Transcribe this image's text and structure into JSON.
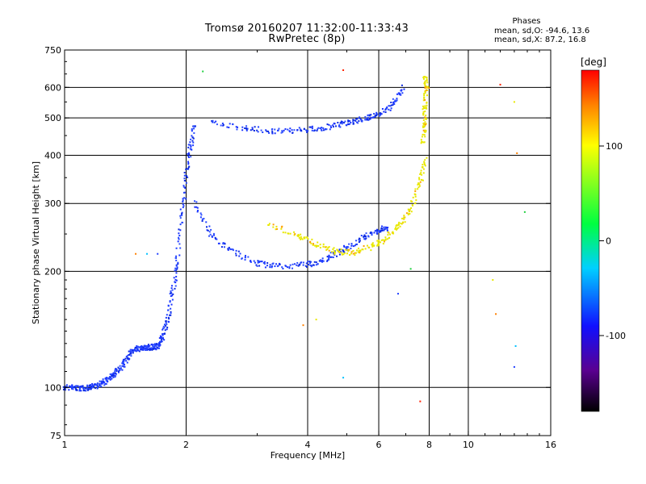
{
  "header": {
    "title": "Tromsø 20160207 11:32:00-11:33:43",
    "subtitle": "RwPretec (8p)"
  },
  "stats": {
    "title": "Phases",
    "line1": "mean, sd,O: -94.6, 13.6",
    "line2": "mean, sd,X:  87.2, 16.8"
  },
  "colorbar": {
    "unit": "[deg]",
    "ticks": [
      {
        "value": 100,
        "label": "100"
      },
      {
        "value": 0,
        "label": "0"
      },
      {
        "value": -100,
        "label": "-100"
      }
    ],
    "range": [
      -180,
      180
    ]
  },
  "chart_data": {
    "type": "scatter",
    "title": "Tromsø 20160207 11:32:00-11:33:43",
    "subtitle": "RwPretec (8p)",
    "xlabel": "Frequency [MHz]",
    "ylabel": "Stationary phase Virtual Height [km]",
    "x_scale": "log",
    "y_scale": "log",
    "xlim": [
      1,
      16
    ],
    "ylim": [
      75,
      750
    ],
    "x_ticks": [
      {
        "value": 1,
        "label": "1"
      },
      {
        "value": 2,
        "label": "2"
      },
      {
        "value": 4,
        "label": "4"
      },
      {
        "value": 6,
        "label": "6"
      },
      {
        "value": 8,
        "label": "8"
      },
      {
        "value": 10,
        "label": "10"
      },
      {
        "value": 16,
        "label": "16"
      }
    ],
    "y_ticks": [
      {
        "value": 75,
        "label": "75"
      },
      {
        "value": 100,
        "label": "100"
      },
      {
        "value": 200,
        "label": "200"
      },
      {
        "value": 300,
        "label": "300"
      },
      {
        "value": 400,
        "label": "400"
      },
      {
        "value": 500,
        "label": "500"
      },
      {
        "value": 600,
        "label": "600"
      },
      {
        "value": 750,
        "label": "750"
      }
    ],
    "grid": true,
    "grid_x": [
      2,
      4,
      6,
      8,
      10
    ],
    "grid_y": [
      100,
      200,
      300,
      400,
      500,
      600
    ],
    "color_scale": "phase [deg], -180 (black) to 180 (red)",
    "series": [
      {
        "trace": "E / low-frequency rise (O-mode)",
        "points": [
          [
            1.0,
            100
          ],
          [
            1.05,
            100
          ],
          [
            1.1,
            99
          ],
          [
            1.15,
            100
          ],
          [
            1.2,
            101
          ],
          [
            1.25,
            103
          ],
          [
            1.3,
            106
          ],
          [
            1.35,
            110
          ],
          [
            1.4,
            115
          ],
          [
            1.45,
            122
          ],
          [
            1.5,
            126
          ],
          [
            1.55,
            126
          ],
          [
            1.6,
            127
          ],
          [
            1.65,
            127
          ],
          [
            1.7,
            128
          ],
          [
            1.75,
            135
          ],
          [
            1.8,
            150
          ],
          [
            1.85,
            175
          ],
          [
            1.9,
            210
          ],
          [
            1.95,
            280
          ],
          [
            2.0,
            350
          ],
          [
            2.05,
            420
          ],
          [
            2.1,
            480
          ]
        ],
        "phase": -100
      },
      {
        "trace": "F1 trace (O-mode)",
        "points": [
          [
            2.1,
            300
          ],
          [
            2.3,
            250
          ],
          [
            2.6,
            225
          ],
          [
            3.0,
            210
          ],
          [
            3.3,
            206
          ],
          [
            3.8,
            207
          ],
          [
            4.2,
            210
          ],
          [
            4.6,
            220
          ],
          [
            5.0,
            230
          ],
          [
            5.5,
            245
          ],
          [
            6.0,
            255
          ],
          [
            6.3,
            260
          ]
        ],
        "phase": -95
      },
      {
        "trace": "F2 trace (O-mode)",
        "points": [
          [
            2.3,
            490
          ],
          [
            2.8,
            470
          ],
          [
            3.3,
            462
          ],
          [
            3.8,
            463
          ],
          [
            4.3,
            470
          ],
          [
            4.8,
            480
          ],
          [
            5.2,
            490
          ],
          [
            5.6,
            500
          ],
          [
            6.0,
            510
          ],
          [
            6.5,
            540
          ],
          [
            6.9,
            600
          ]
        ],
        "phase": -92
      },
      {
        "trace": "F trace (X-mode)",
        "points": [
          [
            3.2,
            265
          ],
          [
            3.8,
            248
          ],
          [
            4.2,
            235
          ],
          [
            4.7,
            225
          ],
          [
            5.2,
            224
          ],
          [
            5.8,
            232
          ],
          [
            6.3,
            245
          ],
          [
            6.8,
            265
          ],
          [
            7.2,
            290
          ],
          [
            7.6,
            340
          ],
          [
            7.8,
            390
          ]
        ],
        "phase": 87
      },
      {
        "trace": "F2 cusp (X-mode)",
        "points": [
          [
            7.7,
            430
          ],
          [
            7.8,
            480
          ],
          [
            7.8,
            530
          ],
          [
            7.9,
            600
          ],
          [
            7.8,
            640
          ]
        ],
        "phase": 90
      },
      {
        "trace": "Sporadic echoes",
        "points": [
          [
            1.5,
            222
          ],
          [
            1.6,
            222
          ],
          [
            1.7,
            222
          ],
          [
            2.2,
            660
          ],
          [
            4.9,
            665
          ],
          [
            4.2,
            150
          ],
          [
            3.9,
            145
          ],
          [
            4.9,
            106
          ],
          [
            6.7,
            175
          ],
          [
            7.2,
            203
          ],
          [
            7.6,
            92
          ],
          [
            11.5,
            190
          ],
          [
            11.7,
            155
          ],
          [
            13.1,
            128
          ],
          [
            13.0,
            113
          ],
          [
            13.8,
            285
          ],
          [
            12.0,
            610
          ],
          [
            13.0,
            550
          ],
          [
            13.2,
            405
          ]
        ],
        "phase": -40
      }
    ]
  }
}
